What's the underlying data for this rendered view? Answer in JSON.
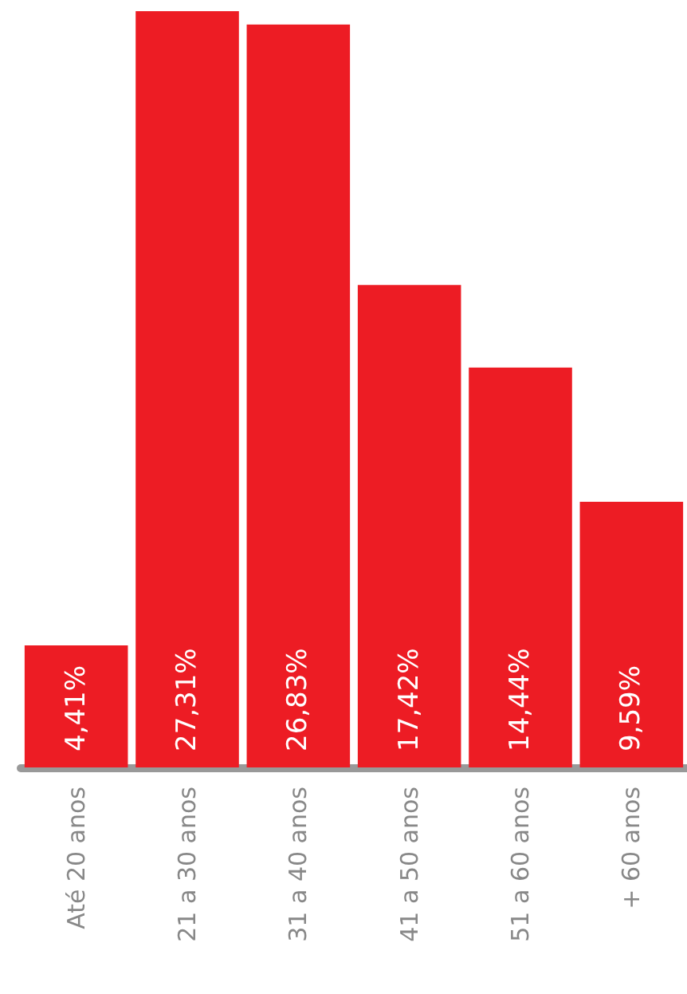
{
  "chart_data": {
    "type": "bar",
    "categories": [
      "Até 20 anos",
      "21 a 30 anos",
      "31 a 40 anos",
      "41 a 50 anos",
      "51 a 60 anos",
      "+ 60 anos"
    ],
    "values": [
      4.41,
      27.31,
      26.83,
      17.42,
      14.44,
      9.59
    ],
    "value_labels": [
      "4,41%",
      "27,31%",
      "26,83%",
      "17,42%",
      "14,44%",
      "9,59%"
    ],
    "color": "#ed1c24"
  }
}
